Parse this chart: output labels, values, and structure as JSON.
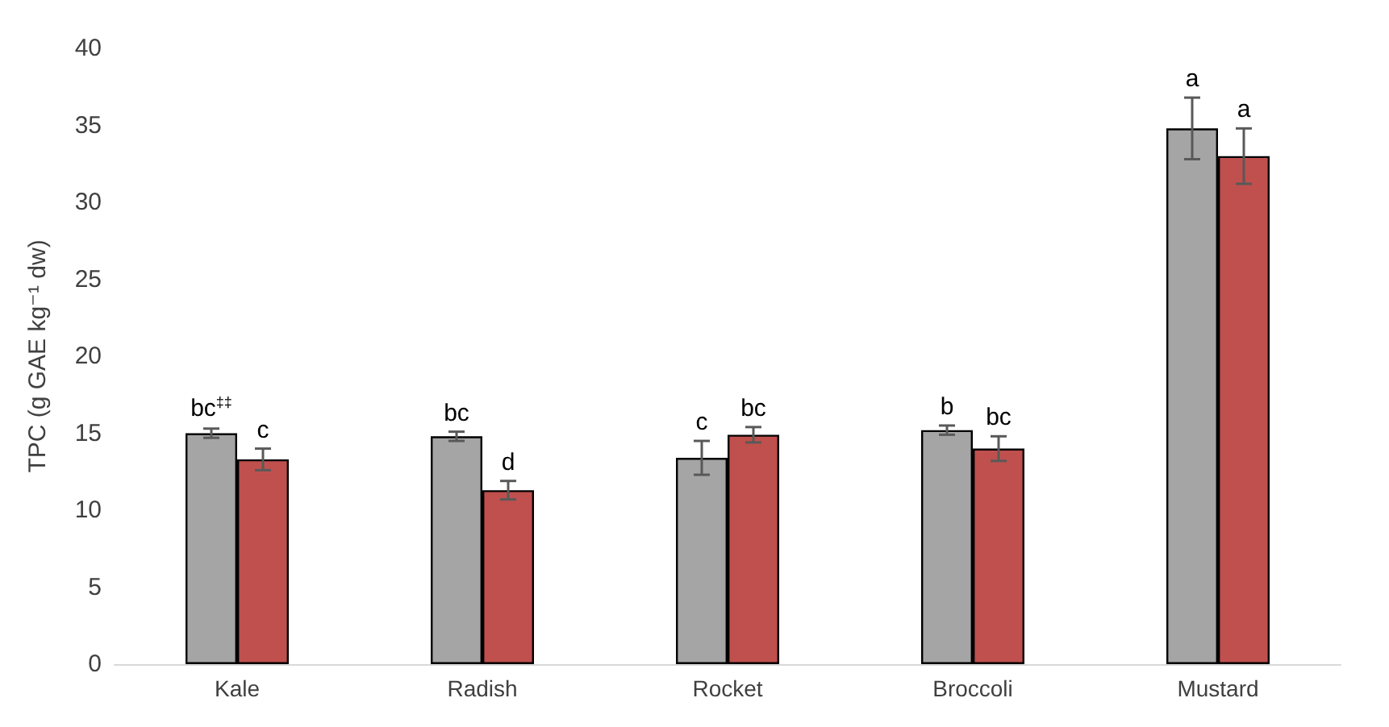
{
  "chart_data": {
    "type": "bar",
    "ylabel": "TPC (g GAE kg⁻¹ dw)",
    "categories": [
      "Kale",
      "Radish",
      "Rocket",
      "Broccoli",
      "Mustard"
    ],
    "series": [
      {
        "color": "#a5a5a5",
        "values": [
          15.0,
          14.8,
          13.4,
          15.2,
          34.8
        ],
        "errors": [
          0.3,
          0.3,
          1.1,
          0.3,
          2.0
        ]
      },
      {
        "color": "#c0504d",
        "values": [
          13.3,
          11.3,
          14.9,
          14.0,
          33.0
        ],
        "errors": [
          0.7,
          0.6,
          0.5,
          0.8,
          1.8
        ]
      }
    ],
    "ylim": [
      0,
      40
    ],
    "yticks": [
      0,
      5,
      10,
      15,
      20,
      25,
      30,
      35,
      40
    ],
    "grid": false,
    "annotations": [
      {
        "text": "bc$^{‡‡}$",
        "x": "Kale",
        "y": 15.0
      },
      {
        "text": "c",
        "x": "Kale",
        "y": 13.3
      },
      {
        "text": "bc",
        "x": "Radish",
        "y": 14.8
      },
      {
        "text": "d",
        "x": "Radish",
        "y": 11.3
      },
      {
        "text": "c",
        "x": "Rocket",
        "y": 13.4
      },
      {
        "text": "bc",
        "x": "Rocket",
        "y": 14.9
      },
      {
        "text": "b",
        "x": "Broccoli",
        "y": 15.2
      },
      {
        "text": "bc",
        "x": "Broccoli",
        "y": 14.0
      },
      {
        "text": "a",
        "x": "Mustard",
        "y": 34.8
      },
      {
        "text": "a",
        "x": "Mustard",
        "y": 33.0
      }
    ]
  }
}
